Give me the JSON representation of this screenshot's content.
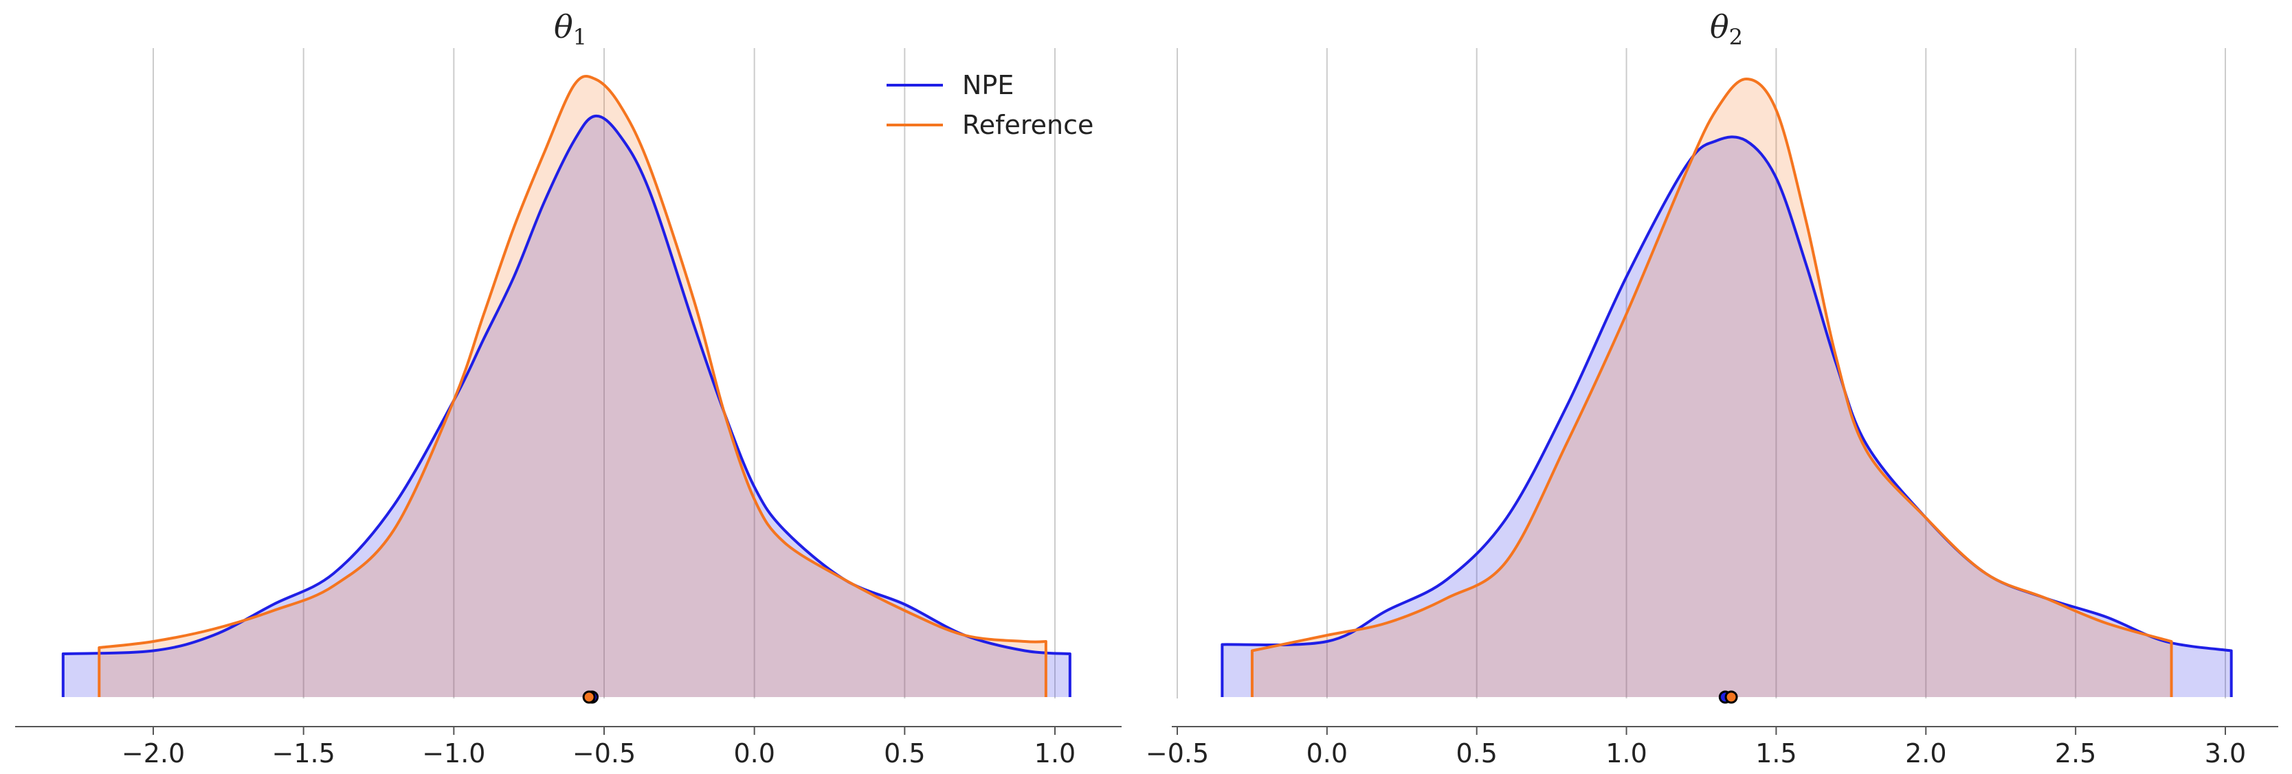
{
  "chart_data": [
    {
      "type": "area",
      "title": "θ",
      "title_subscript": "1",
      "xlabel": "",
      "ylabel": "",
      "xlim": [
        -2.45,
        1.2
      ],
      "ylim": [
        0,
        1.0
      ],
      "x_ticks": [
        -2.0,
        -1.5,
        -1.0,
        -0.5,
        0.0,
        0.5,
        1.0
      ],
      "x_tick_labels": [
        "−2.0",
        "−1.5",
        "−1.0",
        "−0.5",
        "0.0",
        "0.5",
        "1.0"
      ],
      "grid": "vertical",
      "legend": "top-right",
      "series": [
        {
          "name": "NPE",
          "color": "#1f1fe6",
          "fill": "#d2d2f5",
          "point_estimate": -0.54,
          "x": [
            -2.3,
            -2.0,
            -1.8,
            -1.6,
            -1.4,
            -1.2,
            -1.0,
            -0.9,
            -0.8,
            -0.7,
            -0.6,
            -0.53,
            -0.45,
            -0.35,
            -0.2,
            -0.1,
            0.0,
            0.1,
            0.3,
            0.5,
            0.7,
            0.9,
            1.05
          ],
          "values": [
            0.07,
            0.075,
            0.1,
            0.15,
            0.2,
            0.31,
            0.48,
            0.58,
            0.68,
            0.8,
            0.9,
            0.94,
            0.91,
            0.82,
            0.6,
            0.46,
            0.34,
            0.27,
            0.19,
            0.15,
            0.1,
            0.075,
            0.07
          ]
        },
        {
          "name": "Reference",
          "color": "#f5751f",
          "fill": "#fad9bf",
          "point_estimate": -0.55,
          "x": [
            -2.18,
            -2.0,
            -1.8,
            -1.6,
            -1.4,
            -1.2,
            -1.0,
            -0.9,
            -0.8,
            -0.7,
            -0.6,
            -0.53,
            -0.45,
            -0.35,
            -0.2,
            -0.1,
            0.0,
            0.1,
            0.3,
            0.5,
            0.7,
            0.9,
            0.97
          ],
          "values": [
            0.08,
            0.09,
            0.11,
            0.14,
            0.18,
            0.27,
            0.48,
            0.62,
            0.76,
            0.88,
            0.99,
            1.0,
            0.96,
            0.86,
            0.64,
            0.46,
            0.32,
            0.25,
            0.19,
            0.14,
            0.1,
            0.09,
            0.09
          ]
        }
      ]
    },
    {
      "type": "area",
      "title": "θ",
      "title_subscript": "2",
      "xlabel": "",
      "ylabel": "",
      "xlim": [
        -0.6,
        3.15
      ],
      "ylim": [
        0,
        1.0
      ],
      "x_ticks": [
        -0.5,
        0.0,
        0.5,
        1.0,
        1.5,
        2.0,
        2.5,
        3.0
      ],
      "x_tick_labels": [
        "−0.5",
        "0.0",
        "0.5",
        "1.0",
        "1.5",
        "2.0",
        "2.5",
        "3.0"
      ],
      "grid": "vertical",
      "legend": "none",
      "series": [
        {
          "name": "NPE",
          "color": "#1f1fe6",
          "fill": "#d2d2f5",
          "point_estimate": 1.33,
          "x": [
            -0.35,
            0.0,
            0.2,
            0.4,
            0.6,
            0.8,
            1.0,
            1.2,
            1.3,
            1.4,
            1.5,
            1.6,
            1.7,
            1.8,
            2.0,
            2.2,
            2.4,
            2.6,
            2.8,
            3.02
          ],
          "values": [
            0.085,
            0.09,
            0.14,
            0.19,
            0.29,
            0.47,
            0.68,
            0.86,
            0.9,
            0.9,
            0.84,
            0.7,
            0.54,
            0.41,
            0.29,
            0.2,
            0.16,
            0.13,
            0.09,
            0.075
          ]
        },
        {
          "name": "Reference",
          "color": "#f5751f",
          "fill": "#fad9bf",
          "point_estimate": 1.35,
          "x": [
            -0.25,
            0.0,
            0.2,
            0.4,
            0.6,
            0.8,
            1.0,
            1.2,
            1.3,
            1.4,
            1.5,
            1.6,
            1.7,
            1.8,
            2.0,
            2.2,
            2.4,
            2.6,
            2.82
          ],
          "values": [
            0.075,
            0.1,
            0.12,
            0.16,
            0.22,
            0.41,
            0.62,
            0.85,
            0.95,
            1.0,
            0.95,
            0.77,
            0.55,
            0.4,
            0.29,
            0.2,
            0.16,
            0.12,
            0.09
          ]
        }
      ]
    }
  ]
}
